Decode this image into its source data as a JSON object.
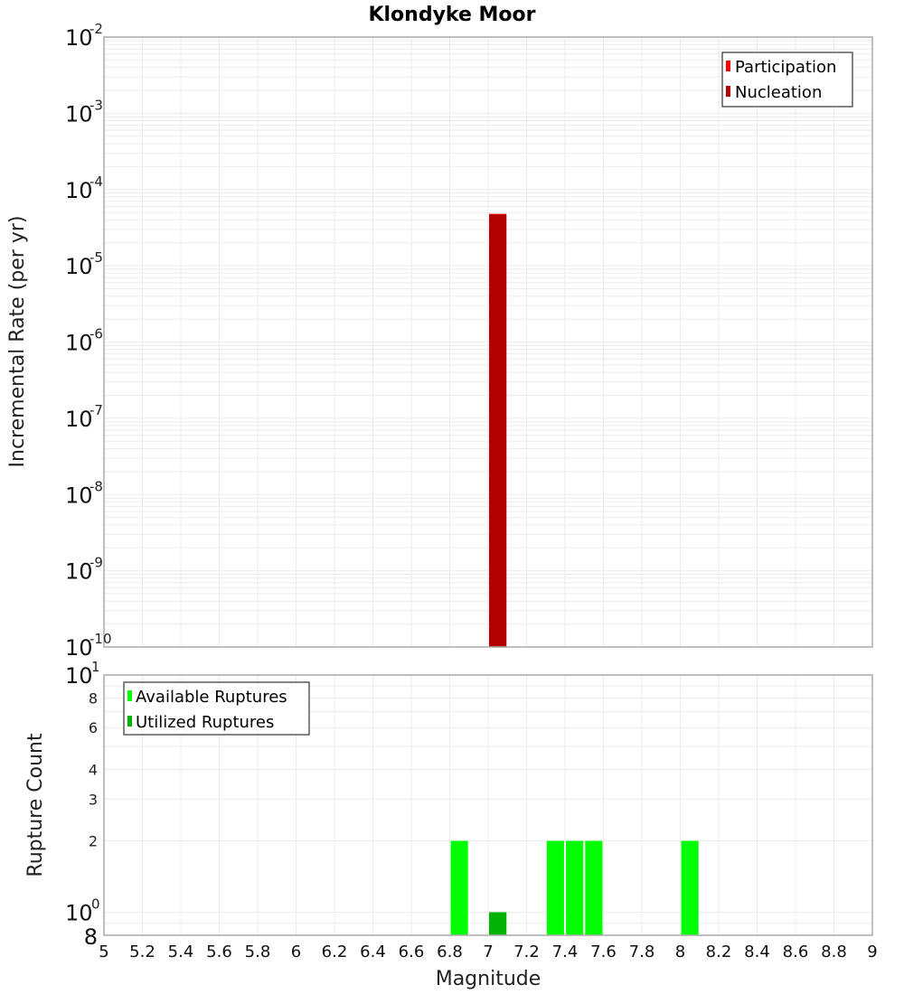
{
  "title": "Klondyke Moor",
  "colors": {
    "participation": "#ff0000",
    "nucleation": "#b30000",
    "available": "#00ff00",
    "utilized": "#00b300",
    "grid": "#ebebeb",
    "frame": "#aaaaaa"
  },
  "chart_data": [
    {
      "type": "bar",
      "title": "Klondyke Moor",
      "xlabel": "Magnitude",
      "ylabel": "Incremental Rate (per yr)",
      "yscale": "log",
      "ylim": [
        1e-10,
        0.01
      ],
      "xlim": [
        5,
        9
      ],
      "grid": true,
      "legend_position": "top-right",
      "y_ticks": [
        "10^-2",
        "10^-3",
        "10^-4",
        "10^-5",
        "10^-6",
        "10^-7",
        "10^-8",
        "10^-9",
        "10^-10"
      ],
      "series": [
        {
          "name": "Participation",
          "color": "#ff0000",
          "x": [
            7.05
          ],
          "values": [
            4.8e-05
          ]
        },
        {
          "name": "Nucleation",
          "color": "#b30000",
          "x": [
            7.05
          ],
          "values": [
            4.7e-05
          ]
        }
      ]
    },
    {
      "type": "bar",
      "xlabel": "Magnitude",
      "ylabel": "Rupture Count",
      "yscale": "log",
      "ylim": [
        0.8,
        10
      ],
      "xlim": [
        5,
        9
      ],
      "grid": true,
      "legend_position": "top-left",
      "y_ticks": [
        "8",
        "10^0",
        "2",
        "3",
        "4",
        "6",
        "8",
        "10^1"
      ],
      "x_ticks": [
        "5",
        "5.2",
        "5.4",
        "5.6",
        "5.8",
        "6",
        "6.2",
        "6.4",
        "6.6",
        "6.8",
        "7",
        "7.2",
        "7.4",
        "7.6",
        "7.8",
        "8",
        "8.2",
        "8.4",
        "8.6",
        "8.8",
        "9"
      ],
      "series": [
        {
          "name": "Available Ruptures",
          "color": "#00ff00",
          "x": [
            6.85,
            7.05,
            7.35,
            7.45,
            7.55,
            8.05
          ],
          "values": [
            2,
            1,
            2,
            2,
            2,
            2
          ]
        },
        {
          "name": "Utilized Ruptures",
          "color": "#00b300",
          "x": [
            7.05
          ],
          "values": [
            1
          ]
        }
      ]
    }
  ],
  "top_plot": {
    "ylabel": "Incremental Rate (per yr)",
    "legend": [
      {
        "label": "Participation",
        "color": "#ff0000"
      },
      {
        "label": "Nucleation",
        "color": "#b30000"
      }
    ]
  },
  "bottom_plot": {
    "ylabel": "Rupture Count",
    "xlabel": "Magnitude",
    "legend": [
      {
        "label": "Available Ruptures",
        "color": "#00ff00"
      },
      {
        "label": "Utilized Ruptures",
        "color": "#00b300"
      }
    ]
  }
}
